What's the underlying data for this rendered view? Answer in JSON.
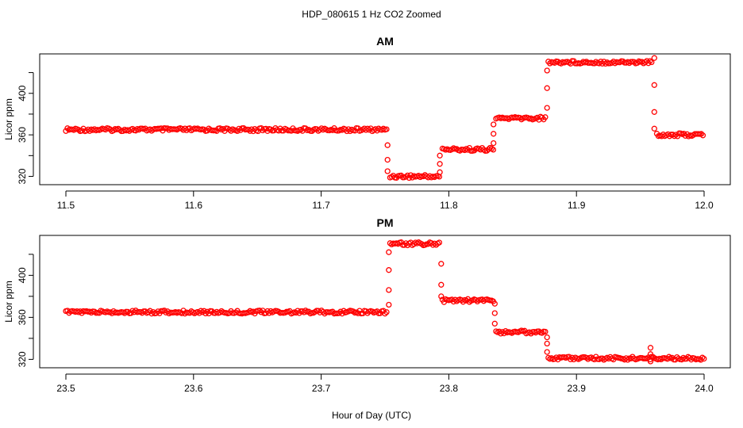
{
  "figure": {
    "title": "HDP_080615  1 Hz CO2 Zoomed",
    "xlabel": "Hour of Day (UTC)"
  },
  "chart_data": [
    {
      "type": "scatter",
      "title": "AM",
      "xlabel": "",
      "ylabel": "Licor ppm",
      "xlim": [
        11.5,
        12.0
      ],
      "ylim": [
        312,
        438
      ],
      "xticks": [
        "11.5",
        "11.6",
        "11.7",
        "11.8",
        "11.9",
        "12.0"
      ],
      "yticks": [
        "320",
        "360",
        "400"
      ],
      "grid": false,
      "marker": "open-circle",
      "color": "#ff0000",
      "segments": [
        {
          "x_start": 11.5,
          "x_end": 11.752,
          "y": 365
        },
        {
          "x_start": 11.754,
          "x_end": 11.793,
          "y": 320
        },
        {
          "x_start": 11.795,
          "x_end": 11.835,
          "y": 346
        },
        {
          "x_start": 11.837,
          "x_end": 11.876,
          "y": 376
        },
        {
          "x_start": 11.878,
          "x_end": 11.96,
          "y": 430
        },
        {
          "x_start": 11.963,
          "x_end": 12.0,
          "y": 360
        }
      ],
      "transitions": [
        {
          "x": 11.752,
          "y": [
            350,
            336,
            325
          ]
        },
        {
          "x": 11.793,
          "y": [
            324,
            332,
            340
          ]
        },
        {
          "x": 11.835,
          "y": [
            352,
            361,
            370
          ]
        },
        {
          "x": 11.877,
          "y": [
            386,
            405,
            422
          ]
        },
        {
          "x": 11.961,
          "y": [
            434,
            408,
            382,
            366
          ]
        }
      ]
    },
    {
      "type": "scatter",
      "title": "PM",
      "xlabel": "",
      "ylabel": "Licor ppm",
      "xlim": [
        23.5,
        24.0
      ],
      "ylim": [
        312,
        438
      ],
      "xticks": [
        "23.5",
        "23.6",
        "23.7",
        "23.8",
        "23.9",
        "24.0"
      ],
      "yticks": [
        "320",
        "360",
        "400"
      ],
      "grid": false,
      "marker": "open-circle",
      "color": "#ff0000",
      "segments": [
        {
          "x_start": 23.5,
          "x_end": 23.752,
          "y": 365
        },
        {
          "x_start": 23.754,
          "x_end": 23.793,
          "y": 430
        },
        {
          "x_start": 23.795,
          "x_end": 23.835,
          "y": 376
        },
        {
          "x_start": 23.837,
          "x_end": 23.876,
          "y": 346
        },
        {
          "x_start": 23.878,
          "x_end": 24.0,
          "y": 321
        }
      ],
      "transitions": [
        {
          "x": 23.753,
          "y": [
            372,
            386,
            405,
            422
          ]
        },
        {
          "x": 23.794,
          "y": [
            411,
            391,
            380
          ]
        },
        {
          "x": 23.836,
          "y": [
            373,
            364,
            354
          ]
        },
        {
          "x": 23.877,
          "y": [
            341,
            335,
            327
          ]
        },
        {
          "x": 23.958,
          "y": [
            331,
            325,
            318
          ]
        }
      ]
    }
  ]
}
